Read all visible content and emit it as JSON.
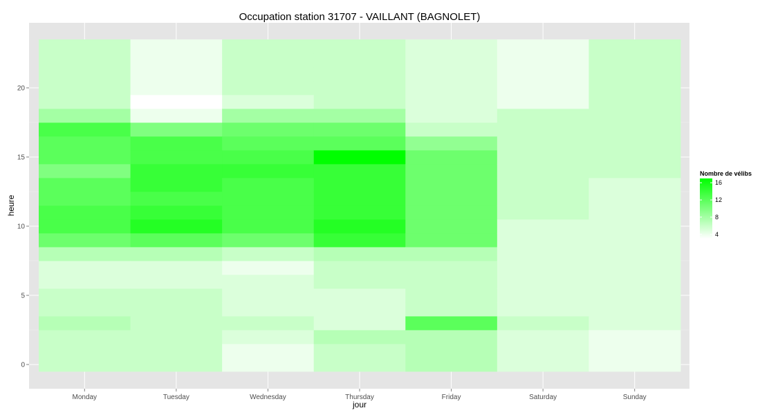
{
  "chart_data": {
    "type": "heatmap",
    "title": "Occupation station 31707 - VAILLANT (BAGNOLET)",
    "xlabel": "jour",
    "ylabel": "heure",
    "x": [
      "Monday",
      "Tuesday",
      "Wednesday",
      "Thursday",
      "Friday",
      "Saturday",
      "Sunday"
    ],
    "y": [
      0,
      1,
      2,
      3,
      4,
      5,
      6,
      7,
      8,
      9,
      10,
      11,
      12,
      13,
      14,
      15,
      16,
      17,
      18,
      19,
      20,
      21,
      22,
      23
    ],
    "yticks": [
      0,
      5,
      10,
      15,
      20
    ],
    "ylim": [
      -0.5,
      23.5
    ],
    "grid": true,
    "legend": {
      "title": "Nombre de vélibs",
      "placement": "right",
      "ticks": [
        4,
        8,
        12,
        16
      ],
      "range": [
        3,
        17
      ],
      "color_low": "#ffffff",
      "color_high": "#00ff00"
    },
    "values": [
      [
        6,
        6,
        6,
        7,
        6,
        6,
        5,
        5,
        7,
        11,
        13,
        13,
        12,
        12,
        10,
        12,
        12,
        13,
        8,
        6,
        6,
        6,
        6,
        6
      ],
      [
        6,
        6,
        6,
        6,
        6,
        6,
        5,
        5,
        7,
        12,
        15,
        14,
        13,
        14,
        14,
        13,
        13,
        10,
        4,
        3,
        4,
        4,
        4,
        4
      ],
      [
        4,
        4,
        5,
        6,
        5,
        5,
        5,
        4,
        6,
        11,
        13,
        13,
        13,
        13,
        14,
        13,
        12,
        11,
        8,
        5,
        6,
        6,
        6,
        6
      ],
      [
        6,
        6,
        7,
        5,
        5,
        5,
        6,
        6,
        7,
        14,
        15,
        14,
        14,
        14,
        14,
        17,
        12,
        11,
        8,
        6,
        6,
        6,
        6,
        6
      ],
      [
        7,
        7,
        7,
        12,
        6,
        6,
        6,
        6,
        7,
        11,
        11,
        11,
        11,
        11,
        11,
        11,
        9,
        6,
        5,
        5,
        5,
        5,
        5,
        5
      ],
      [
        5,
        5,
        5,
        6,
        5,
        5,
        5,
        5,
        5,
        5,
        5,
        6,
        6,
        6,
        6,
        6,
        6,
        6,
        6,
        4,
        4,
        4,
        4,
        4
      ],
      [
        4,
        4,
        4,
        5,
        5,
        5,
        5,
        5,
        5,
        5,
        5,
        5,
        5,
        5,
        6,
        6,
        6,
        6,
        6,
        6,
        6,
        6,
        6,
        6
      ]
    ]
  }
}
